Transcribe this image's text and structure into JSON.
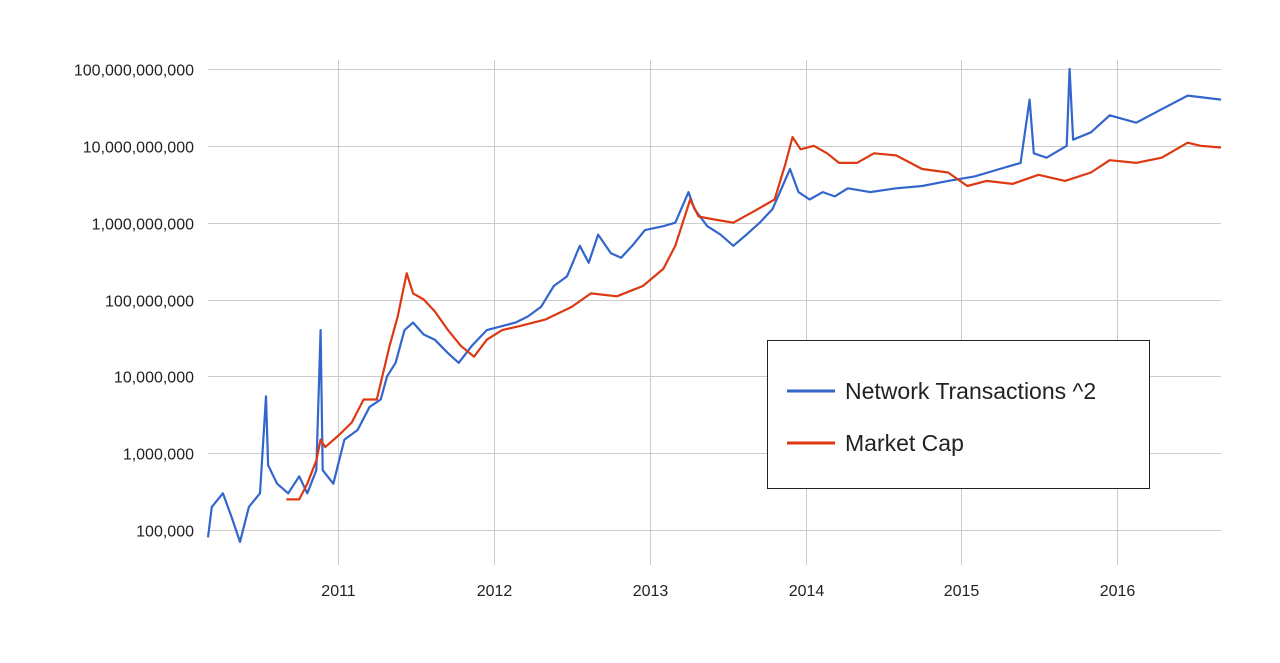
{
  "chart_data": {
    "type": "line",
    "title": "",
    "xlabel": "",
    "ylabel": "",
    "scale": {
      "y": "log"
    },
    "grid": true,
    "legend_position": "right, inside plot",
    "x_range": [
      "2010-03-01",
      "2016-09-01"
    ],
    "y_range": [
      100000,
      100000000000
    ],
    "y_ticks": [
      {
        "value": 100000,
        "label": "100,000"
      },
      {
        "value": 1000000,
        "label": "1,000,000"
      },
      {
        "value": 10000000,
        "label": "10,000,000"
      },
      {
        "value": 100000000,
        "label": "100,000,000"
      },
      {
        "value": 1000000000,
        "label": "1,000,000,000"
      },
      {
        "value": 10000000000,
        "label": "10,000,000,000"
      },
      {
        "value": 100000000000,
        "label": "100,000,000,000"
      }
    ],
    "x_ticks": [
      {
        "value": "2011-01-01",
        "label": "2011"
      },
      {
        "value": "2012-01-01",
        "label": "2012"
      },
      {
        "value": "2013-01-01",
        "label": "2013"
      },
      {
        "value": "2014-01-01",
        "label": "2014"
      },
      {
        "value": "2015-01-01",
        "label": "2015"
      },
      {
        "value": "2016-01-01",
        "label": "2016"
      }
    ],
    "series": [
      {
        "name": "Network Transactions ^2",
        "color": "#3366cc",
        "points": [
          [
            "2010-03-01",
            80000
          ],
          [
            "2010-03-10",
            200000
          ],
          [
            "2010-04-05",
            300000
          ],
          [
            "2010-04-25",
            150000
          ],
          [
            "2010-05-15",
            70000
          ],
          [
            "2010-06-05",
            200000
          ],
          [
            "2010-07-01",
            300000
          ],
          [
            "2010-07-15",
            5500000
          ],
          [
            "2010-07-20",
            700000
          ],
          [
            "2010-08-10",
            400000
          ],
          [
            "2010-09-05",
            300000
          ],
          [
            "2010-10-01",
            500000
          ],
          [
            "2010-10-20",
            300000
          ],
          [
            "2010-11-10",
            600000
          ],
          [
            "2010-11-20",
            40000000
          ],
          [
            "2010-11-25",
            600000
          ],
          [
            "2010-12-20",
            400000
          ],
          [
            "2011-01-15",
            1500000
          ],
          [
            "2011-02-15",
            2000000
          ],
          [
            "2011-03-15",
            4000000
          ],
          [
            "2011-04-10",
            5000000
          ],
          [
            "2011-04-25",
            10000000
          ],
          [
            "2011-05-15",
            15000000
          ],
          [
            "2011-06-05",
            40000000
          ],
          [
            "2011-06-25",
            50000000
          ],
          [
            "2011-07-20",
            35000000
          ],
          [
            "2011-08-15",
            30000000
          ],
          [
            "2011-09-15",
            20000000
          ],
          [
            "2011-10-10",
            15000000
          ],
          [
            "2011-11-10",
            25000000
          ],
          [
            "2011-12-15",
            40000000
          ],
          [
            "2012-01-20",
            45000000
          ],
          [
            "2012-02-20",
            50000000
          ],
          [
            "2012-03-20",
            60000000
          ],
          [
            "2012-04-20",
            80000000
          ],
          [
            "2012-05-20",
            150000000
          ],
          [
            "2012-06-20",
            200000000
          ],
          [
            "2012-07-20",
            500000000
          ],
          [
            "2012-08-10",
            300000000
          ],
          [
            "2012-09-01",
            700000000
          ],
          [
            "2012-10-01",
            400000000
          ],
          [
            "2012-10-25",
            350000000
          ],
          [
            "2012-11-20",
            500000000
          ],
          [
            "2012-12-20",
            800000000
          ],
          [
            "2013-02-01",
            900000000
          ],
          [
            "2013-03-01",
            1000000000
          ],
          [
            "2013-04-01",
            2500000000
          ],
          [
            "2013-04-15",
            1500000000
          ],
          [
            "2013-05-15",
            900000000
          ],
          [
            "2013-06-15",
            700000000
          ],
          [
            "2013-07-15",
            500000000
          ],
          [
            "2013-08-15",
            700000000
          ],
          [
            "2013-09-15",
            1000000000
          ],
          [
            "2013-10-15",
            1500000000
          ],
          [
            "2013-11-25",
            5000000000
          ],
          [
            "2013-12-15",
            2500000000
          ],
          [
            "2014-01-10",
            2000000000
          ],
          [
            "2014-02-10",
            2500000000
          ],
          [
            "2014-03-10",
            2200000000
          ],
          [
            "2014-04-10",
            2800000000
          ],
          [
            "2014-06-01",
            2500000000
          ],
          [
            "2014-08-01",
            2800000000
          ],
          [
            "2014-10-01",
            3000000000
          ],
          [
            "2014-12-01",
            3500000000
          ],
          [
            "2015-02-01",
            4000000000
          ],
          [
            "2015-04-01",
            5000000000
          ],
          [
            "2015-05-20",
            6000000000
          ],
          [
            "2015-06-10",
            40000000000
          ],
          [
            "2015-06-20",
            8000000000
          ],
          [
            "2015-07-20",
            7000000000
          ],
          [
            "2015-09-05",
            10000000000
          ],
          [
            "2015-09-12",
            100000000000
          ],
          [
            "2015-09-20",
            12000000000
          ],
          [
            "2015-11-01",
            15000000000
          ],
          [
            "2015-12-15",
            25000000000
          ],
          [
            "2016-02-15",
            20000000000
          ],
          [
            "2016-04-15",
            30000000000
          ],
          [
            "2016-06-15",
            45000000000
          ],
          [
            "2016-09-01",
            40000000000
          ]
        ]
      },
      {
        "name": "Market Cap",
        "color": "#dc3912",
        "points": [
          [
            "2010-09-01",
            250000
          ],
          [
            "2010-10-01",
            250000
          ],
          [
            "2010-10-20",
            400000
          ],
          [
            "2010-11-10",
            800000
          ],
          [
            "2010-11-20",
            1500000
          ],
          [
            "2010-12-01",
            1200000
          ],
          [
            "2011-01-01",
            1700000
          ],
          [
            "2011-02-01",
            2500000
          ],
          [
            "2011-03-01",
            5000000
          ],
          [
            "2011-04-01",
            5000000
          ],
          [
            "2011-05-01",
            25000000
          ],
          [
            "2011-05-20",
            60000000
          ],
          [
            "2011-06-10",
            220000000
          ],
          [
            "2011-06-25",
            120000000
          ],
          [
            "2011-07-20",
            100000000
          ],
          [
            "2011-08-15",
            70000000
          ],
          [
            "2011-09-15",
            40000000
          ],
          [
            "2011-10-15",
            25000000
          ],
          [
            "2011-11-15",
            18000000
          ],
          [
            "2011-12-15",
            30000000
          ],
          [
            "2012-01-20",
            40000000
          ],
          [
            "2012-03-01",
            45000000
          ],
          [
            "2012-05-01",
            55000000
          ],
          [
            "2012-07-01",
            80000000
          ],
          [
            "2012-08-15",
            120000000
          ],
          [
            "2012-10-15",
            110000000
          ],
          [
            "2012-12-15",
            150000000
          ],
          [
            "2013-02-01",
            250000000
          ],
          [
            "2013-03-01",
            500000000
          ],
          [
            "2013-04-05",
            2000000000
          ],
          [
            "2013-04-25",
            1200000000
          ],
          [
            "2013-06-01",
            1100000000
          ],
          [
            "2013-07-15",
            1000000000
          ],
          [
            "2013-09-01",
            1400000000
          ],
          [
            "2013-10-20",
            2000000000
          ],
          [
            "2013-11-15",
            6000000000
          ],
          [
            "2013-12-01",
            13000000000
          ],
          [
            "2013-12-20",
            9000000000
          ],
          [
            "2014-01-20",
            10000000000
          ],
          [
            "2014-02-20",
            8000000000
          ],
          [
            "2014-03-20",
            6000000000
          ],
          [
            "2014-05-01",
            6000000000
          ],
          [
            "2014-06-10",
            8000000000
          ],
          [
            "2014-08-01",
            7500000000
          ],
          [
            "2014-10-01",
            5000000000
          ],
          [
            "2014-12-01",
            4500000000
          ],
          [
            "2015-01-15",
            3000000000
          ],
          [
            "2015-03-01",
            3500000000
          ],
          [
            "2015-05-01",
            3200000000
          ],
          [
            "2015-07-01",
            4200000000
          ],
          [
            "2015-09-01",
            3500000000
          ],
          [
            "2015-11-01",
            4500000000
          ],
          [
            "2015-12-15",
            6500000000
          ],
          [
            "2016-02-15",
            6000000000
          ],
          [
            "2016-04-15",
            7000000000
          ],
          [
            "2016-06-15",
            11000000000
          ],
          [
            "2016-07-15",
            10000000000
          ],
          [
            "2016-09-01",
            9500000000
          ]
        ]
      }
    ]
  }
}
